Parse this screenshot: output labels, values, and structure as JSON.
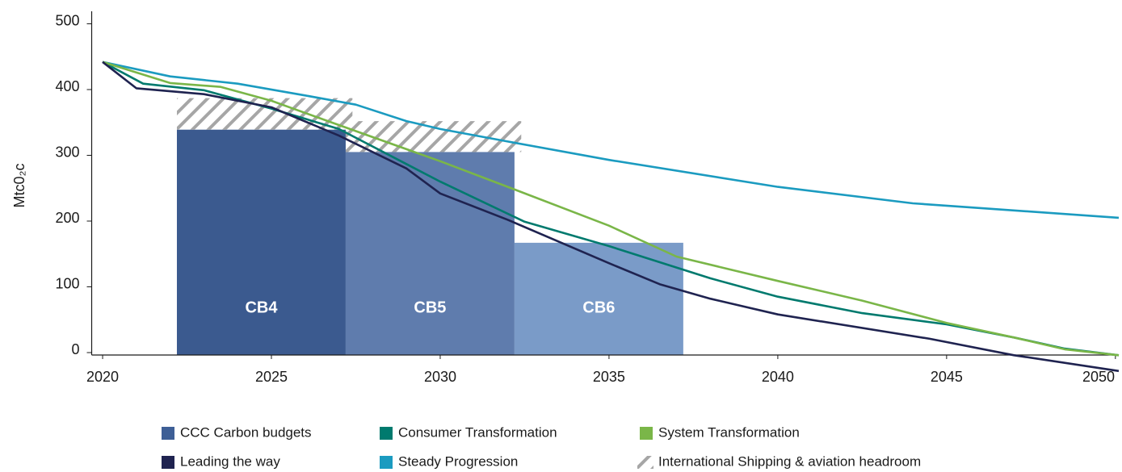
{
  "chart_data": {
    "type": "line",
    "y_axis_label": "Mtc0₂c",
    "xlim": [
      2019.7,
      2050.1
    ],
    "xticks": [
      2020,
      2025,
      2030,
      2035,
      2040,
      2045,
      2050
    ],
    "ylim": [
      0,
      500
    ],
    "yticks": [
      0,
      100,
      200,
      300,
      400,
      500
    ],
    "budgets": {
      "name": "CCC Carbon budgets",
      "color": "#3e5f96",
      "labels": [
        "CB4",
        "CB5",
        "CB6"
      ],
      "starts": [
        2022.2,
        2027.2,
        2032.2
      ],
      "ends": [
        2027.2,
        2032.2,
        2037.2
      ],
      "values": [
        339,
        305,
        167
      ],
      "colors": [
        "#3b5a8f",
        "#5f7cad",
        "#7a9bc8"
      ]
    },
    "headroom": {
      "name": "International Shipping & aviation headroom",
      "color": "#a6a6a6",
      "starts": [
        2022.2,
        2027.2
      ],
      "ends": [
        2027.4,
        2032.4
      ],
      "values": [
        48,
        47
      ]
    },
    "series": [
      {
        "name": "Steady Progression",
        "color": "#1b9bc0",
        "x": [
          2020,
          2022,
          2024,
          2026,
          2027.5,
          2029,
          2030,
          2032,
          2035,
          2040,
          2044,
          2050.1
        ],
        "values": [
          442,
          420,
          409,
          391,
          377,
          352,
          340,
          321,
          293,
          252,
          227,
          205
        ]
      },
      {
        "name": "Consumer Transformation",
        "color": "#007a6e",
        "x": [
          2020,
          2021.2,
          2023,
          2025,
          2027,
          2030,
          2032.5,
          2035,
          2038,
          2040,
          2042.5,
          2045,
          2047,
          2048.5,
          2050.1
        ],
        "values": [
          442,
          409,
          399,
          371,
          340,
          260,
          199,
          162,
          113,
          85,
          60,
          43,
          23,
          6,
          -4
        ]
      },
      {
        "name": "System Transformation",
        "color": "#7ab648",
        "x": [
          2020,
          2022,
          2023.5,
          2025,
          2027,
          2030,
          2032,
          2035,
          2037,
          2040,
          2042.5,
          2045,
          2047,
          2048.5,
          2050.1
        ],
        "values": [
          442,
          410,
          404,
          383,
          346,
          291,
          252,
          193,
          146,
          109,
          79,
          45,
          23,
          5,
          -4
        ]
      },
      {
        "name": "Leading the way",
        "color": "#1f2350",
        "x": [
          2020,
          2021,
          2023,
          2025,
          2027,
          2029,
          2030,
          2032,
          2035,
          2036.5,
          2038,
          2040,
          2044.5,
          2047,
          2050.1
        ],
        "values": [
          442,
          402,
          393,
          373,
          330,
          280,
          242,
          202,
          136,
          104,
          82,
          58,
          21,
          -4,
          -28
        ]
      }
    ]
  }
}
